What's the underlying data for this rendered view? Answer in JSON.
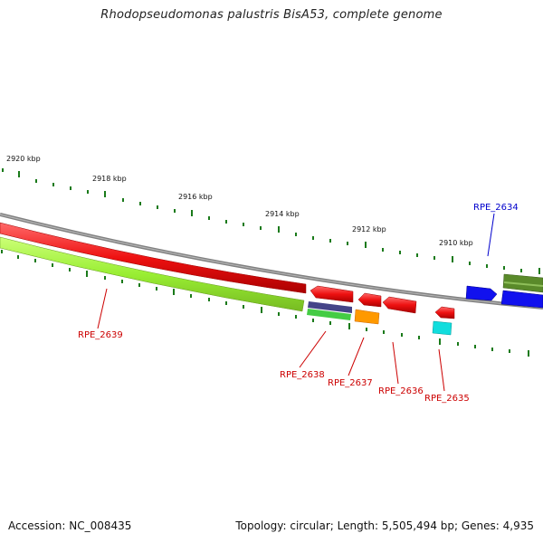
{
  "title": "Rhodopseudomonas palustris BisA53, complete genome",
  "footer": {
    "accession": "Accession: NC_008435",
    "summary": "Topology: circular; Length: 5,505,494 bp; Genes: 4,935"
  },
  "scale_labels": [
    "2920 kbp",
    "2918 kbp",
    "2916 kbp",
    "2914 kbp",
    "2912 kbp",
    "2910 kbp"
  ],
  "genes": [
    {
      "name": "RPE_2639",
      "color": "#cc0000"
    },
    {
      "name": "RPE_2638",
      "color": "#cc0000"
    },
    {
      "name": "RPE_2637",
      "color": "#cc0000"
    },
    {
      "name": "RPE_2636",
      "color": "#cc0000"
    },
    {
      "name": "RPE_2635",
      "color": "#cc0000"
    },
    {
      "name": "RPE_2634",
      "color": "#0000cc"
    }
  ],
  "colors": {
    "backbone": "#808080",
    "tick": "#1a7a1a",
    "red": "#ee1111",
    "lime": "#99ee33",
    "green": "#44cc44",
    "navy": "#444488",
    "orange": "#ff9900",
    "cyan": "#11dddd",
    "blue": "#1111ee",
    "olive": "#5a8a2a"
  }
}
